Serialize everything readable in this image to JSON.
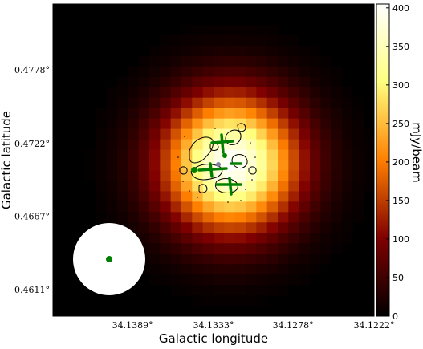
{
  "chart_data": {
    "type": "heatmap",
    "title": "",
    "xlabel": "Galactic longitude",
    "ylabel": "Galactic latitude",
    "colorbar_label": "mJy/beam",
    "x_ticks": [
      "34.1389°",
      "34.1333°",
      "34.1278°",
      "34.1222°"
    ],
    "y_ticks": [
      "0.4778°",
      "0.4722°",
      "0.4667°",
      "0.4611°"
    ],
    "x_tick_values": [
      34.1389,
      34.1333,
      34.1278,
      34.1222
    ],
    "y_tick_values": [
      0.4778,
      0.4722,
      0.4667,
      0.4611
    ],
    "xlim": [
      34.1444,
      34.1222
    ],
    "ylim": [
      0.4591,
      0.4828
    ],
    "colorbar_ticks": [
      0,
      50,
      100,
      150,
      200,
      250,
      300,
      350,
      400
    ],
    "colorbar_range": [
      0,
      405
    ],
    "colormap": "afmhot",
    "peak_value": 405,
    "peak_position": {
      "l": 34.1321,
      "b": 0.4707
    },
    "grid": false,
    "overlays": {
      "contour_color": "#000000",
      "marker_color": "#008000",
      "beam": {
        "position": "bottom-left",
        "fill": "#ffffff",
        "center_color": "#008000"
      }
    }
  }
}
